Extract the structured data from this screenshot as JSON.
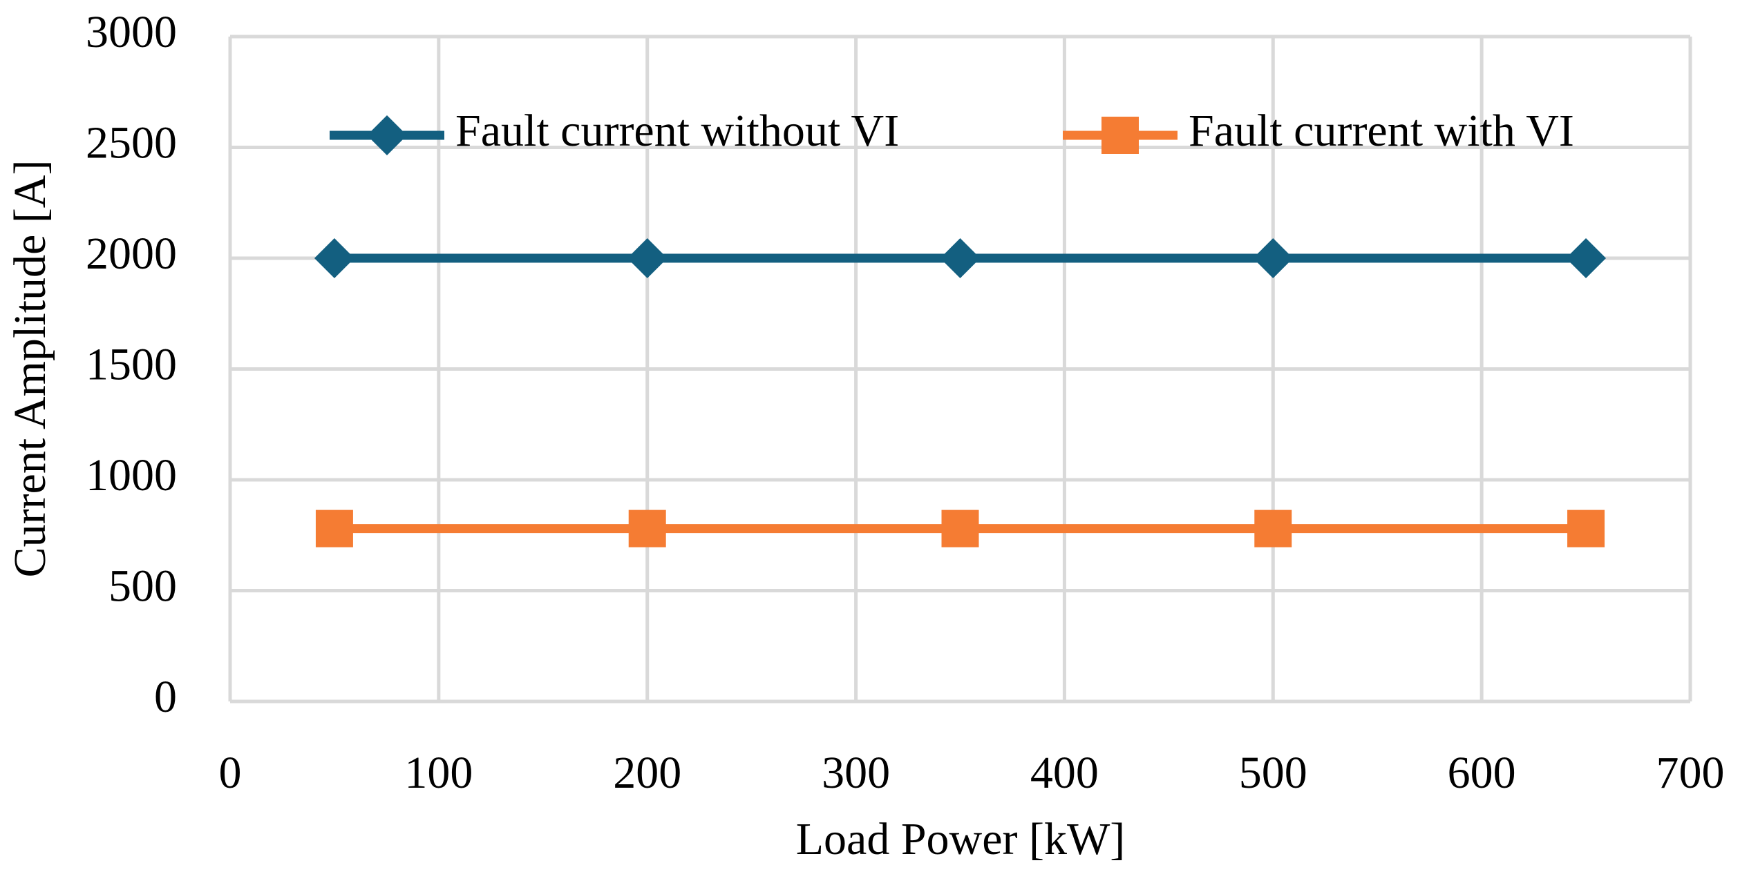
{
  "chart_data": {
    "type": "line",
    "x_label": "Load Power [kW]",
    "y_label": "Current Amplitude [A]",
    "x": [
      50,
      200,
      350,
      500,
      650
    ],
    "series": [
      {
        "name": "Fault current without VI",
        "color": "#135f80",
        "marker": "diamond",
        "values": [
          2000,
          2000,
          2000,
          2000,
          2000
        ]
      },
      {
        "name": "Fault current with VI",
        "color": "#f57c33",
        "marker": "square",
        "values": [
          780,
          780,
          780,
          780,
          780
        ]
      }
    ],
    "xlim": [
      0,
      700
    ],
    "xticks": [
      0,
      100,
      200,
      300,
      400,
      500,
      600,
      700
    ],
    "ylim": [
      0,
      3000
    ],
    "yticks": [
      0,
      500,
      1000,
      1500,
      2000,
      2500,
      3000
    ],
    "grid": true,
    "legend": "top"
  }
}
